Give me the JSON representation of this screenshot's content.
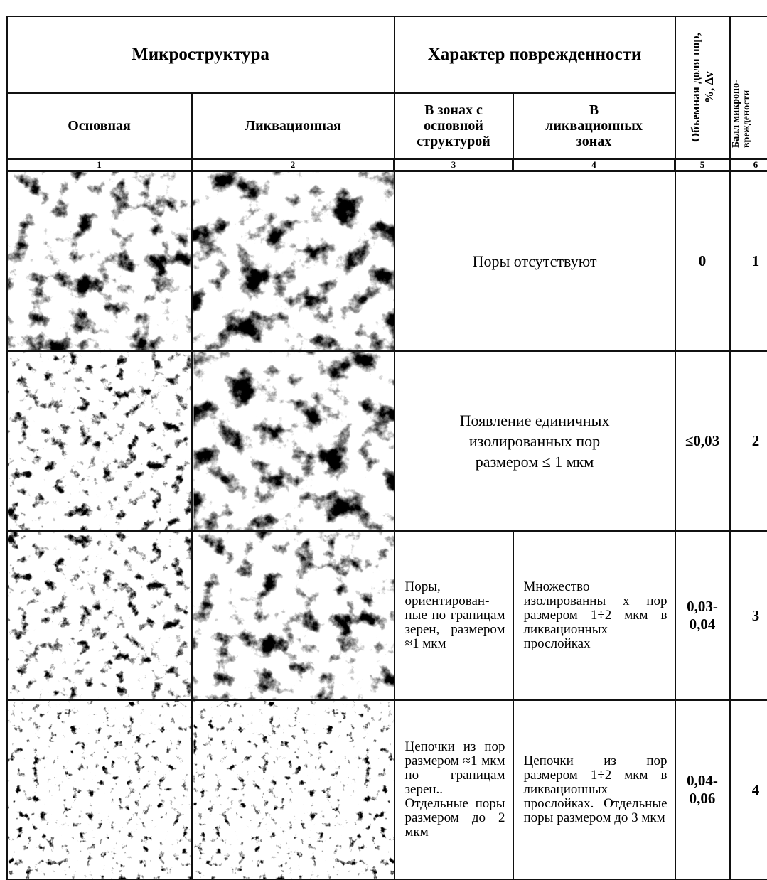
{
  "header": {
    "microstructure": "Микроструктура",
    "damage": "Характер поврежденности",
    "volume": "Объемная доля пор, %, Δv",
    "score": "Балл микропо- вреждености"
  },
  "subheader": {
    "base": "Основная",
    "segregation": "Ликвационная",
    "damage_base": "В зонах с основной структурой",
    "damage_segregation": "В ликвационных зонах"
  },
  "column_numbers": [
    1,
    2,
    3,
    4,
    5,
    6
  ],
  "rows": [
    {
      "damage": "Поры отсутствуют",
      "volume": 0,
      "score": 1
    },
    {
      "damage": "Появление единичных изолированных пор размером ≤ 1 мкм",
      "volume": "≤0,03",
      "score": 2
    },
    {
      "damage_base": "Поры, ориентирован-ные по границам зерен, размером ≈1 мкм",
      "damage_segregation": "Множество изолированны х пор размером 1÷2 мкм в ликвационных прослойках",
      "volume": "0,03-0,04",
      "score": 3
    },
    {
      "damage_base": "Цепочки из пор размером ≈1 мкм по границам зерен.. Отдельные поры размером до 2 мкм",
      "damage_segregation": "Цепочки из пор размером 1÷2 мкм в ликвационных прослойках. Отдельные поры размером до 3 мкм",
      "volume": "0,04-0,06",
      "score": 4
    }
  ]
}
